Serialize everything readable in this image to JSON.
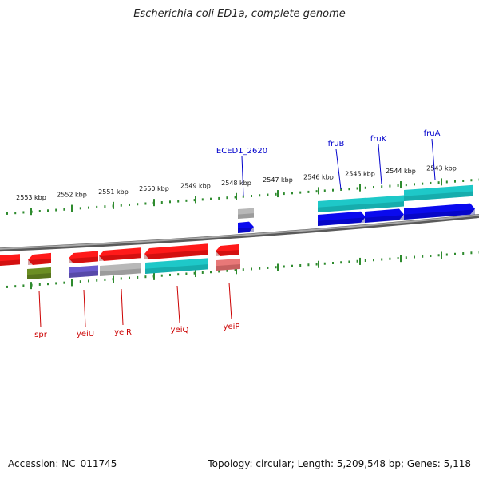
{
  "title": "Escherichia coli ED1a, complete genome",
  "footer": {
    "accession": "Accession: NC_011745",
    "summary": "Topology: circular; Length: 5,209,548 bp; Genes: 5,118"
  },
  "colors": {
    "backbone": "#808080",
    "tick": "#2e8b2e",
    "forward_label": "#0000cc",
    "reverse_label": "#cc0000",
    "red": "#ff1a1a",
    "blue": "#0a0aee",
    "cyan": "#1ec8c8",
    "gray": "#b8b8b8",
    "olive": "#6b8e23",
    "purple": "#6a5acd",
    "pink": "#e87878"
  },
  "scale_ticks": [
    {
      "label": "2553 kbp"
    },
    {
      "label": "2552 kbp"
    },
    {
      "label": "2551 kbp"
    },
    {
      "label": "2550 kbp"
    },
    {
      "label": "2549 kbp"
    },
    {
      "label": "2548 kbp"
    },
    {
      "label": "2547 kbp"
    },
    {
      "label": "2546 kbp"
    },
    {
      "label": "2545 kbp"
    },
    {
      "label": "2544 kbp"
    },
    {
      "label": "2543 kbp"
    }
  ],
  "forward_genes": [
    {
      "name": "ECED1_2620",
      "cog_color": "gray"
    },
    {
      "name": "fruB",
      "cog_color": "cyan"
    },
    {
      "name": "fruK",
      "cog_color": "cyan"
    },
    {
      "name": "fruA",
      "cog_color": "cyan"
    }
  ],
  "reverse_genes": [
    {
      "name": "spr",
      "cog_color": "olive"
    },
    {
      "name": "yeiU",
      "cog_color": "purple"
    },
    {
      "name": "yeiR",
      "cog_color": "gray"
    },
    {
      "name": "yeiQ",
      "cog_color": "cyan"
    },
    {
      "name": "yeiP",
      "cog_color": "pink"
    }
  ]
}
